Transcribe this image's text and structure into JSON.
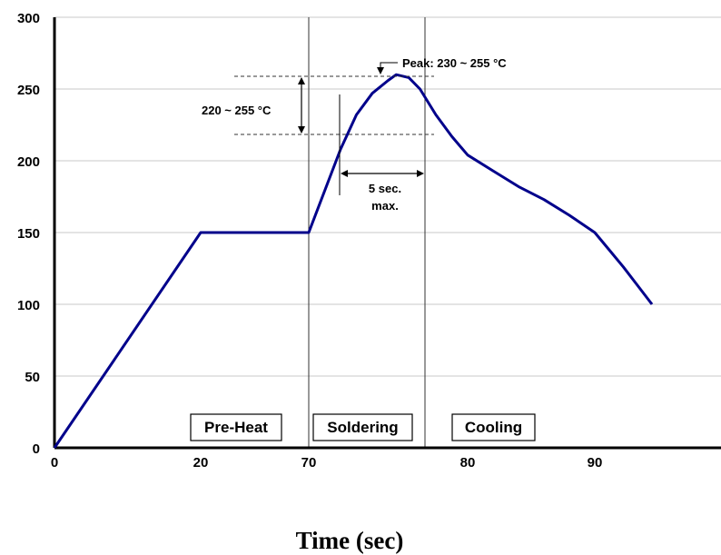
{
  "chart_data": {
    "type": "line",
    "title": "",
    "xlabel": "Time (sec)",
    "ylabel": "",
    "ylim": [
      0,
      300
    ],
    "yticks": [
      0,
      50,
      100,
      150,
      200,
      250,
      300
    ],
    "xtick_labels": [
      "0",
      "20",
      "70",
      "80",
      "90"
    ],
    "grid": true,
    "legend": "none",
    "line_color": "#00008B",
    "series": [
      {
        "values": [
          {
            "x": "0",
            "y": 0
          },
          {
            "x": "20",
            "y": 150
          },
          {
            "x": "70",
            "y": 150
          },
          {
            "x": "72",
            "y": 208
          },
          {
            "x": "73",
            "y": 232
          },
          {
            "x": "74",
            "y": 247
          },
          {
            "x": "75",
            "y": 256
          },
          {
            "x": "75.5",
            "y": 260
          },
          {
            "x": "76.3",
            "y": 258
          },
          {
            "x": "77",
            "y": 250
          },
          {
            "x": "78",
            "y": 232
          },
          {
            "x": "79",
            "y": 217
          },
          {
            "x": "80",
            "y": 204
          },
          {
            "x": "82",
            "y": 193
          },
          {
            "x": "84",
            "y": 182
          },
          {
            "x": "86",
            "y": 173
          },
          {
            "x": "88",
            "y": 162
          },
          {
            "x": "90",
            "y": 150
          },
          {
            "x": "92",
            "y": 138
          },
          {
            "x": "94",
            "y": 126
          },
          {
            "x": "96",
            "y": 113
          },
          {
            "x": "98",
            "y": 100
          }
        ]
      }
    ],
    "phases": [
      "Pre-Heat",
      "Soldering",
      "Cooling"
    ],
    "annotations": {
      "peak": "Peak: 230 ~ 255 °C",
      "range": "220 ~ 255 °C",
      "duration_line1": "5 sec.",
      "duration_line2": "max."
    }
  }
}
